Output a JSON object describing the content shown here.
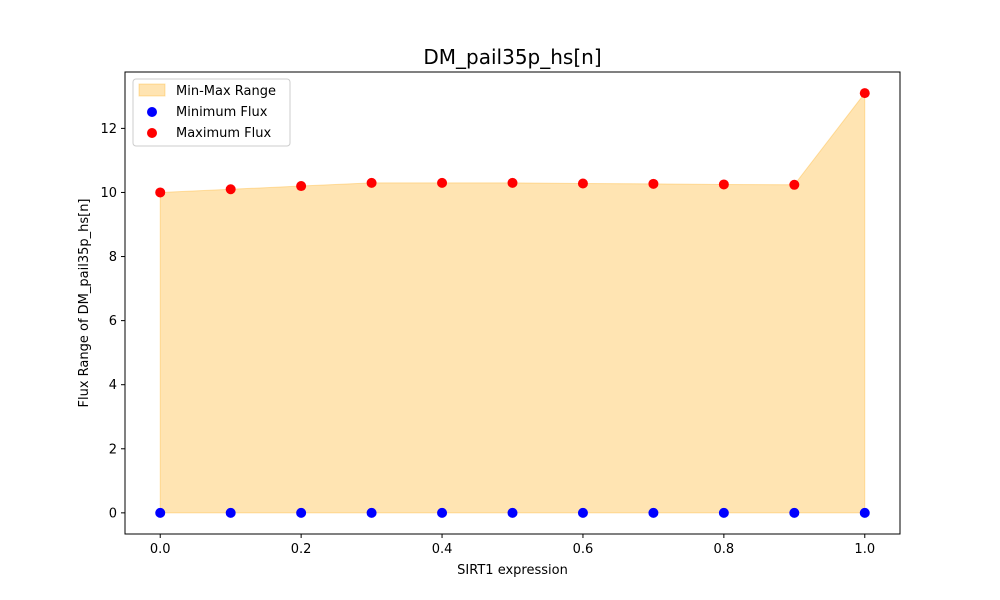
{
  "chart_data": {
    "type": "area",
    "title": "DM_pail35p_hs[n]",
    "xlabel": "SIRT1 expression",
    "ylabel": "Flux Range of DM_pail35p_hs[n]",
    "xlim": [
      -0.05,
      1.05
    ],
    "ylim": [
      -0.66,
      13.76
    ],
    "x_ticks": [
      "0.0",
      "0.2",
      "0.4",
      "0.6",
      "0.8",
      "1.0"
    ],
    "y_ticks": [
      "0",
      "2",
      "4",
      "6",
      "8",
      "10",
      "12"
    ],
    "grid": false,
    "legend_position": "top-left",
    "x": [
      0.0,
      0.1,
      0.2,
      0.3,
      0.4,
      0.5,
      0.6,
      0.7,
      0.8,
      0.9,
      1.0
    ],
    "series": [
      {
        "name": "Min-Max Range",
        "kind": "fill_between",
        "color": "#ffa500",
        "opacity": 0.3,
        "lower": [
          0,
          0,
          0,
          0,
          0,
          0,
          0,
          0,
          0,
          0,
          0
        ],
        "upper": [
          10.0,
          10.1,
          10.2,
          10.3,
          10.3,
          10.3,
          10.28,
          10.27,
          10.25,
          10.24,
          13.1
        ]
      },
      {
        "name": "Minimum Flux",
        "kind": "scatter",
        "color": "#0000ff",
        "values": [
          0,
          0,
          0,
          0,
          0,
          0,
          0,
          0,
          0,
          0,
          0
        ]
      },
      {
        "name": "Maximum Flux",
        "kind": "scatter",
        "color": "#ff0000",
        "values": [
          10.0,
          10.1,
          10.2,
          10.3,
          10.3,
          10.3,
          10.28,
          10.27,
          10.25,
          10.24,
          13.1
        ]
      }
    ]
  }
}
